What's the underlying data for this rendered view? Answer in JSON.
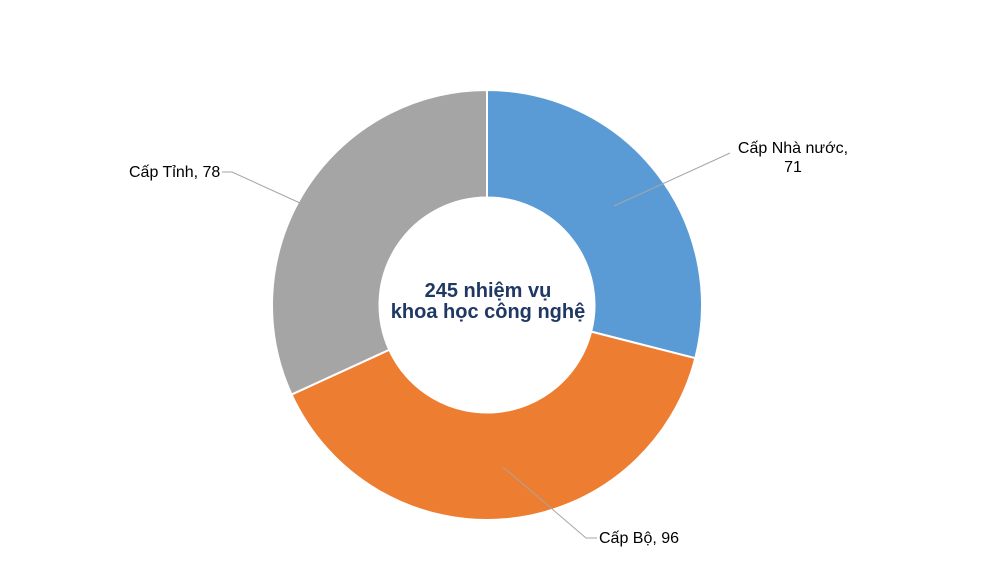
{
  "chart_data": {
    "type": "pie",
    "subtype": "donut",
    "categories": [
      "Cấp Nhà nước",
      "Cấp Bộ",
      "Cấp Tỉnh"
    ],
    "values": [
      71,
      96,
      78
    ],
    "total": 245,
    "colors": [
      "#5B9BD5",
      "#ED7D31",
      "#A5A5A5"
    ],
    "start_angle_deg": 0,
    "direction": "clockwise",
    "hole_ratio": 0.5,
    "legend": "none",
    "background": "#FFFFFF",
    "label_color": "#000000",
    "leader_line_color": "#A6A6A6",
    "center_label": {
      "line1": "245 nhiệm vụ",
      "line2": "khoa học công nghệ",
      "color": "#1F3864"
    },
    "data_labels": [
      {
        "line1": "Cấp Nhà nước,",
        "line2": "71",
        "text": "Cấp Nhà nước, 71"
      },
      {
        "text": "Cấp Bộ, 96"
      },
      {
        "text": "Cấp Tỉnh, 78"
      }
    ]
  }
}
